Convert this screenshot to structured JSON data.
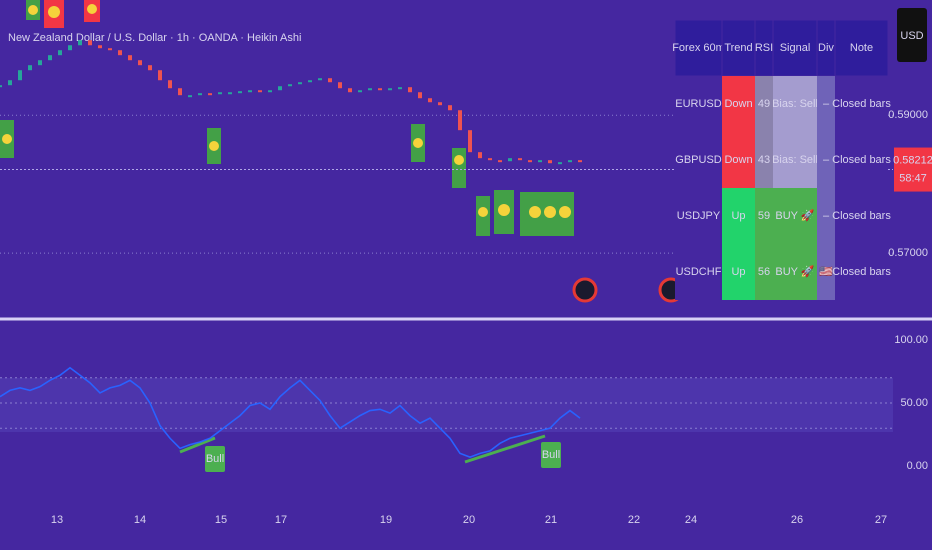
{
  "header": {
    "title": "New Zealand Dollar / U.S. Dollar · 1h · OANDA · Heikin Ashi",
    "currency_button": "USD"
  },
  "price_pane": {
    "type": "candles",
    "up_color": "#26a69a",
    "down_color": "#ef5350",
    "values": [
      0.59435,
      0.59507,
      0.59652,
      0.59725,
      0.59797,
      0.5987,
      0.59942,
      0.60014,
      0.60087,
      0.60014,
      0.59971,
      0.59942,
      0.5987,
      0.59797,
      0.59725,
      0.59652,
      0.59507,
      0.59391,
      0.5929,
      0.5929,
      0.59319,
      0.59304,
      0.59333,
      0.59333,
      0.59348,
      0.59362,
      0.59333,
      0.59362,
      0.5942,
      0.59449,
      0.59478,
      0.59507,
      0.59536,
      0.59478,
      0.59391,
      0.59333,
      0.59362,
      0.59391,
      0.59362,
      0.59391,
      0.59406,
      0.59333,
      0.59246,
      0.59188,
      0.59145,
      0.59072,
      0.58783,
      0.58464,
      0.58377,
      0.58348,
      0.58333,
      0.58377,
      0.58348,
      0.58319,
      0.58348,
      0.58304,
      0.58319,
      0.58348,
      0.58333
    ],
    "ylim": [
      0.5606,
      0.6067
    ],
    "yticks": [
      {
        "value": 0.59,
        "label": "0.59000"
      },
      {
        "value": 0.57,
        "label": "0.57000"
      }
    ],
    "last_price": {
      "value": 0.58212,
      "label": "0.58212",
      "countdown": "58:47",
      "color": "#f23645"
    }
  },
  "rsi_pane": {
    "type": "line",
    "color": "#2962ff",
    "values": [
      55,
      60,
      62,
      60,
      63,
      68,
      72,
      78,
      72,
      66,
      58,
      62,
      64,
      68,
      62,
      50,
      32,
      22,
      14,
      17,
      19,
      22,
      28,
      34,
      40,
      48,
      50,
      45,
      55,
      62,
      68,
      60,
      52,
      40,
      30,
      35,
      40,
      44,
      45,
      42,
      48,
      40,
      34,
      38,
      30,
      22,
      10,
      7,
      10,
      12,
      18,
      22,
      24,
      26,
      28,
      30,
      38,
      44,
      38
    ],
    "ylim": [
      0,
      100
    ],
    "yticks": [
      {
        "value": 100,
        "label": "100.00"
      },
      {
        "value": 50,
        "label": "50.00"
      },
      {
        "value": 0,
        "label": "0.00"
      }
    ],
    "band": [
      30,
      70
    ],
    "annotations": [
      "Bull",
      "Bull"
    ]
  },
  "x_axis": {
    "labels": [
      "13",
      "14",
      "15",
      "17",
      "19",
      "20",
      "21",
      "22",
      "24",
      "26",
      "27"
    ]
  },
  "table": {
    "columns": [
      "Forex 60m",
      "Trend",
      "RSI",
      "Signal",
      "Div",
      "Note"
    ],
    "rows": [
      {
        "cells": [
          "EURUSD",
          "Down",
          "49",
          "Bias: Sell",
          "–",
          "Closed bars"
        ],
        "trend_color": "#f23645",
        "rsi_color": "#8a82ad",
        "signal_color": "#a49ccf"
      },
      {
        "cells": [
          "GBPUSD",
          "Down",
          "43",
          "Bias: Sell",
          "–",
          "Closed bars"
        ],
        "trend_color": "#f23645",
        "rsi_color": "#8a82ad",
        "signal_color": "#a49ccf"
      },
      {
        "cells": [
          "USDJPY",
          "Up",
          "59",
          "BUY 🚀",
          "–",
          "Closed bars"
        ],
        "trend_color": "#22d36b",
        "rsi_color": "#4caf50",
        "signal_color": "#4caf50"
      },
      {
        "cells": [
          "USDCHF",
          "Up",
          "56",
          "BUY 🚀",
          "🇺🇸",
          "Closed bars"
        ],
        "trend_color": "#22d36b",
        "rsi_color": "#4caf50",
        "signal_color": "#4caf50"
      }
    ]
  }
}
